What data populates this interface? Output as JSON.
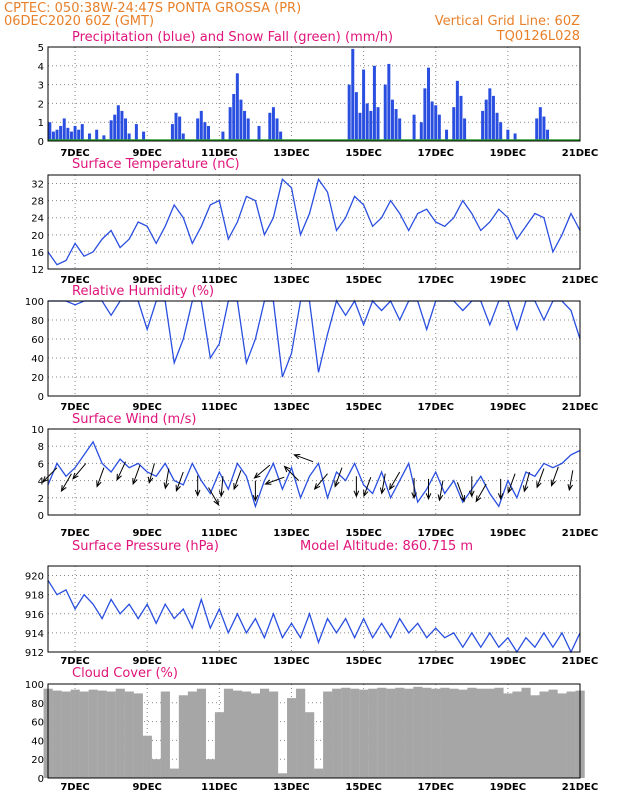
{
  "header": {
    "line1": "CPTEC:  050:38W-24:47S  PONTA GROSSA (PR)",
    "line2": "06DEC2020 60Z (GMT)",
    "grid_note": "Vertical Grid Line: 60Z",
    "code": "TQ0126L028"
  },
  "colors": {
    "header": "#e8802a",
    "title": "#e0147a",
    "line": "#2a4fe0",
    "snow": "#2aa02a",
    "cloud": "#a6a6a6"
  },
  "x_ticks": [
    "7DEC",
    "9DEC",
    "11DEC",
    "13DEC",
    "15DEC",
    "17DEC",
    "19DEC",
    "21DEC"
  ],
  "chart_data": [
    {
      "type": "bar",
      "title": "Precipitation (blue) and Snow Fall (green) (mm/h)",
      "ylim": [
        0,
        5
      ],
      "yticks": [
        "0",
        "1",
        "2",
        "3",
        "4",
        "5"
      ],
      "x_range_days": [
        6.25,
        21.0
      ],
      "series": [
        {
          "name": "Precipitation",
          "color": "#2a4fe0",
          "points": [
            [
              6.3,
              1.0
            ],
            [
              6.4,
              0.5
            ],
            [
              6.5,
              0.6
            ],
            [
              6.6,
              0.8
            ],
            [
              6.7,
              1.2
            ],
            [
              6.8,
              0.7
            ],
            [
              6.9,
              0.5
            ],
            [
              7.0,
              0.8
            ],
            [
              7.1,
              0.6
            ],
            [
              7.2,
              0.9
            ],
            [
              7.4,
              0.4
            ],
            [
              7.6,
              0.6
            ],
            [
              7.8,
              0.3
            ],
            [
              8.0,
              1.1
            ],
            [
              8.1,
              1.4
            ],
            [
              8.2,
              1.9
            ],
            [
              8.3,
              1.6
            ],
            [
              8.4,
              1.2
            ],
            [
              8.5,
              0.4
            ],
            [
              8.7,
              0.9
            ],
            [
              8.9,
              0.5
            ],
            [
              9.7,
              0.9
            ],
            [
              9.8,
              1.5
            ],
            [
              9.9,
              1.3
            ],
            [
              10.0,
              0.4
            ],
            [
              10.4,
              1.2
            ],
            [
              10.5,
              1.6
            ],
            [
              10.6,
              1.0
            ],
            [
              10.7,
              0.8
            ],
            [
              11.1,
              0.5
            ],
            [
              11.3,
              1.8
            ],
            [
              11.4,
              2.5
            ],
            [
              11.5,
              3.6
            ],
            [
              11.6,
              2.2
            ],
            [
              11.7,
              1.6
            ],
            [
              11.8,
              1.2
            ],
            [
              12.1,
              0.8
            ],
            [
              12.4,
              1.5
            ],
            [
              12.5,
              1.8
            ],
            [
              12.6,
              1.2
            ],
            [
              12.7,
              0.5
            ],
            [
              14.6,
              3.0
            ],
            [
              14.7,
              4.9
            ],
            [
              14.8,
              2.6
            ],
            [
              14.9,
              1.5
            ],
            [
              15.0,
              3.8
            ],
            [
              15.1,
              2.0
            ],
            [
              15.2,
              1.6
            ],
            [
              15.3,
              4.0
            ],
            [
              15.4,
              1.8
            ],
            [
              15.6,
              3.0
            ],
            [
              15.7,
              4.1
            ],
            [
              15.8,
              2.2
            ],
            [
              15.9,
              1.7
            ],
            [
              16.0,
              1.2
            ],
            [
              16.4,
              1.4
            ],
            [
              16.6,
              1.0
            ],
            [
              16.7,
              2.8
            ],
            [
              16.8,
              3.9
            ],
            [
              16.9,
              2.1
            ],
            [
              17.0,
              1.9
            ],
            [
              17.1,
              1.4
            ],
            [
              17.3,
              0.6
            ],
            [
              17.5,
              1.8
            ],
            [
              17.6,
              3.2
            ],
            [
              17.7,
              2.4
            ],
            [
              17.8,
              1.2
            ],
            [
              18.3,
              1.6
            ],
            [
              18.4,
              2.2
            ],
            [
              18.5,
              2.8
            ],
            [
              18.6,
              2.4
            ],
            [
              18.7,
              1.5
            ],
            [
              18.8,
              1.0
            ],
            [
              19.0,
              0.6
            ],
            [
              19.2,
              0.4
            ],
            [
              19.8,
              1.2
            ],
            [
              19.9,
              1.8
            ],
            [
              20.0,
              1.3
            ],
            [
              20.1,
              0.6
            ]
          ]
        },
        {
          "name": "Snow Fall",
          "color": "#2aa02a",
          "points": []
        }
      ]
    },
    {
      "type": "line",
      "title": "Surface Temperature (nC)",
      "ylim": [
        12,
        34
      ],
      "yticks": [
        "12",
        "16",
        "20",
        "24",
        "28",
        "32"
      ],
      "x_range_days": [
        6.25,
        21.0
      ],
      "x": [
        6.25,
        6.5,
        6.75,
        7.0,
        7.25,
        7.5,
        7.75,
        8.0,
        8.25,
        8.5,
        8.75,
        9.0,
        9.25,
        9.5,
        9.75,
        10.0,
        10.25,
        10.5,
        10.75,
        11.0,
        11.25,
        11.5,
        11.75,
        12.0,
        12.25,
        12.5,
        12.75,
        13.0,
        13.25,
        13.5,
        13.75,
        14.0,
        14.25,
        14.5,
        14.75,
        15.0,
        15.25,
        15.5,
        15.75,
        16.0,
        16.25,
        16.5,
        16.75,
        17.0,
        17.25,
        17.5,
        17.75,
        18.0,
        18.25,
        18.5,
        18.75,
        19.0,
        19.25,
        19.5,
        19.75,
        20.0,
        20.25,
        20.5,
        20.75,
        21.0
      ],
      "y": [
        16,
        13,
        14,
        18,
        15,
        16,
        19,
        21,
        17,
        19,
        23,
        22,
        18,
        22,
        27,
        24,
        18,
        22,
        27,
        28,
        19,
        23,
        29,
        28,
        20,
        24,
        33,
        31,
        20,
        25,
        33,
        30,
        21,
        24,
        29,
        27,
        22,
        24,
        28,
        25,
        21,
        25,
        26,
        23,
        22,
        24,
        28,
        25,
        21,
        23,
        26,
        24,
        19,
        22,
        25,
        24,
        16,
        20,
        25,
        21
      ]
    },
    {
      "type": "line",
      "title": "Relative Humidity (%)",
      "ylim": [
        0,
        100
      ],
      "yticks": [
        "0",
        "20",
        "40",
        "60",
        "80",
        "100"
      ],
      "x_range_days": [
        6.25,
        21.0
      ],
      "x": [
        6.25,
        6.5,
        6.75,
        7.0,
        7.25,
        7.5,
        7.75,
        8.0,
        8.25,
        8.5,
        8.75,
        9.0,
        9.25,
        9.5,
        9.75,
        10.0,
        10.25,
        10.5,
        10.75,
        11.0,
        11.25,
        11.5,
        11.75,
        12.0,
        12.25,
        12.5,
        12.75,
        13.0,
        13.25,
        13.5,
        13.75,
        14.0,
        14.25,
        14.5,
        14.75,
        15.0,
        15.25,
        15.5,
        15.75,
        16.0,
        16.25,
        16.5,
        16.75,
        17.0,
        17.25,
        17.5,
        17.75,
        18.0,
        18.25,
        18.5,
        18.75,
        19.0,
        19.25,
        19.5,
        19.75,
        20.0,
        20.25,
        20.5,
        20.75,
        21.0
      ],
      "y": [
        100,
        100,
        100,
        96,
        100,
        100,
        100,
        85,
        100,
        100,
        100,
        70,
        100,
        100,
        35,
        60,
        100,
        100,
        40,
        55,
        100,
        100,
        35,
        60,
        100,
        100,
        20,
        45,
        100,
        100,
        25,
        65,
        100,
        85,
        100,
        75,
        100,
        90,
        100,
        80,
        100,
        100,
        70,
        100,
        100,
        100,
        90,
        100,
        100,
        75,
        100,
        100,
        70,
        100,
        100,
        80,
        100,
        100,
        90,
        60
      ]
    },
    {
      "type": "line",
      "title": "Surface Wind (m/s)",
      "ylim": [
        0,
        10
      ],
      "yticks": [
        "0",
        "2",
        "4",
        "6",
        "8",
        "10"
      ],
      "x_range_days": [
        6.25,
        21.0
      ],
      "x": [
        6.25,
        6.5,
        6.75,
        7.0,
        7.25,
        7.5,
        7.75,
        8.0,
        8.25,
        8.5,
        8.75,
        9.0,
        9.25,
        9.5,
        9.75,
        10.0,
        10.25,
        10.5,
        10.75,
        11.0,
        11.25,
        11.5,
        11.75,
        12.0,
        12.25,
        12.5,
        12.75,
        13.0,
        13.25,
        13.5,
        13.75,
        14.0,
        14.25,
        14.5,
        14.75,
        15.0,
        15.25,
        15.5,
        15.75,
        16.0,
        16.25,
        16.5,
        16.75,
        17.0,
        17.25,
        17.5,
        17.75,
        18.0,
        18.25,
        18.5,
        18.75,
        19.0,
        19.25,
        19.5,
        19.75,
        20.0,
        20.25,
        20.5,
        20.75,
        21.0
      ],
      "y": [
        3.5,
        6,
        4.5,
        5.5,
        7,
        8.5,
        6,
        5,
        6.5,
        5.5,
        6,
        5,
        4.5,
        6,
        4,
        3.5,
        6,
        4,
        2.5,
        5,
        3,
        6,
        4.5,
        1,
        4,
        6,
        3,
        5.5,
        2,
        4.5,
        6,
        2,
        5,
        4,
        6,
        3.5,
        2.5,
        5,
        2,
        4,
        6,
        1.5,
        3,
        5,
        2.5,
        4,
        1.5,
        3,
        4.5,
        2.5,
        1,
        4,
        2,
        5,
        4.5,
        6,
        5.5,
        6,
        7,
        7.5
      ],
      "arrows": [
        [
          6.5,
          5.5,
          225
        ],
        [
          6.9,
          4.8,
          240
        ],
        [
          7.3,
          6.0,
          230
        ],
        [
          7.8,
          5.5,
          250
        ],
        [
          8.4,
          6.2,
          245
        ],
        [
          8.8,
          5.8,
          250
        ],
        [
          9.2,
          6.0,
          255
        ],
        [
          9.6,
          5.4,
          260
        ],
        [
          10.0,
          5.0,
          250
        ],
        [
          10.4,
          4.6,
          270
        ],
        [
          10.7,
          3.2,
          300
        ],
        [
          11.1,
          4.5,
          265
        ],
        [
          11.6,
          5.2,
          250
        ],
        [
          12.0,
          4.0,
          270
        ],
        [
          12.4,
          5.8,
          220
        ],
        [
          12.8,
          4.4,
          200
        ],
        [
          13.2,
          4.0,
          135
        ],
        [
          13.6,
          6.2,
          160
        ],
        [
          14.0,
          4.8,
          230
        ],
        [
          14.4,
          5.5,
          250
        ],
        [
          14.8,
          4.5,
          270
        ],
        [
          15.2,
          4.4,
          250
        ],
        [
          15.6,
          4.8,
          260
        ],
        [
          16.0,
          5.0,
          240
        ],
        [
          16.4,
          4.3,
          270
        ],
        [
          16.8,
          4.2,
          270
        ],
        [
          17.2,
          4.0,
          260
        ],
        [
          17.6,
          3.8,
          290
        ],
        [
          18.0,
          4.5,
          270
        ],
        [
          18.4,
          3.6,
          240
        ],
        [
          18.8,
          4.2,
          270
        ],
        [
          19.2,
          4.8,
          250
        ],
        [
          19.6,
          5.0,
          255
        ],
        [
          20.0,
          5.4,
          250
        ],
        [
          20.4,
          5.6,
          250
        ],
        [
          20.8,
          5.2,
          260
        ]
      ]
    },
    {
      "type": "line",
      "title": "Surface Pressure (hPa)",
      "subtitle": "Model Altitude: 860.715 m",
      "ylim": [
        912,
        921
      ],
      "yticks": [
        "912",
        "914",
        "916",
        "918",
        "920"
      ],
      "x_range_days": [
        6.25,
        21.0
      ],
      "x": [
        6.25,
        6.5,
        6.75,
        7.0,
        7.25,
        7.5,
        7.75,
        8.0,
        8.25,
        8.5,
        8.75,
        9.0,
        9.25,
        9.5,
        9.75,
        10.0,
        10.25,
        10.5,
        10.75,
        11.0,
        11.25,
        11.5,
        11.75,
        12.0,
        12.25,
        12.5,
        12.75,
        13.0,
        13.25,
        13.5,
        13.75,
        14.0,
        14.25,
        14.5,
        14.75,
        15.0,
        15.25,
        15.5,
        15.75,
        16.0,
        16.25,
        16.5,
        16.75,
        17.0,
        17.25,
        17.5,
        17.75,
        18.0,
        18.25,
        18.5,
        18.75,
        19.0,
        19.25,
        19.5,
        19.75,
        20.0,
        20.25,
        20.5,
        20.75,
        21.0
      ],
      "y": [
        919.5,
        918,
        918.5,
        916.5,
        918,
        917,
        915.5,
        917.5,
        916,
        917,
        915.5,
        917,
        915,
        917,
        915.5,
        916.5,
        914.5,
        917.5,
        914.5,
        916.5,
        914,
        916,
        914,
        915.5,
        913.5,
        916,
        913.5,
        915,
        913.5,
        916,
        913,
        915.5,
        914,
        915.5,
        913.5,
        915.5,
        913.5,
        915,
        913.5,
        915.5,
        914,
        915,
        913.5,
        914.5,
        913.5,
        914,
        912.5,
        914,
        912.5,
        914,
        912.5,
        913.5,
        912,
        913.5,
        912.5,
        914,
        912.5,
        914,
        912,
        914
      ]
    },
    {
      "type": "bar",
      "title": "Cloud Cover (%)",
      "ylim": [
        0,
        100
      ],
      "yticks": [
        "0",
        "20",
        "40",
        "60",
        "80",
        "100"
      ],
      "x_range_days": [
        6.25,
        21.0
      ],
      "x": [
        6.25,
        6.5,
        6.75,
        7.0,
        7.25,
        7.5,
        7.75,
        8.0,
        8.25,
        8.5,
        8.75,
        9.0,
        9.25,
        9.5,
        9.75,
        10.0,
        10.25,
        10.5,
        10.75,
        11.0,
        11.25,
        11.5,
        11.75,
        12.0,
        12.25,
        12.5,
        12.75,
        13.0,
        13.25,
        13.5,
        13.75,
        14.0,
        14.25,
        14.5,
        14.75,
        15.0,
        15.25,
        15.5,
        15.75,
        16.0,
        16.25,
        16.5,
        16.75,
        17.0,
        17.25,
        17.5,
        17.75,
        18.0,
        18.25,
        18.5,
        18.75,
        19.0,
        19.25,
        19.5,
        19.75,
        20.0,
        20.25,
        20.5,
        20.75,
        21.0
      ],
      "y": [
        95,
        93,
        92,
        94,
        92,
        94,
        93,
        92,
        95,
        92,
        90,
        45,
        20,
        92,
        10,
        88,
        92,
        95,
        20,
        70,
        95,
        93,
        92,
        90,
        95,
        92,
        5,
        85,
        95,
        70,
        10,
        92,
        95,
        96,
        95,
        94,
        95,
        96,
        95,
        96,
        95,
        97,
        96,
        95,
        96,
        95,
        94,
        96,
        95,
        95,
        96,
        90,
        92,
        96,
        88,
        92,
        94,
        90,
        92,
        93
      ]
    }
  ]
}
